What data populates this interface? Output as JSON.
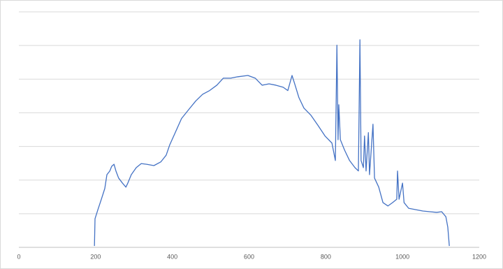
{
  "chart_data": {
    "type": "line",
    "x": [
      197,
      198.5,
      206,
      215,
      224,
      229.5,
      237,
      242,
      248,
      253,
      260,
      270,
      279,
      284,
      293,
      306,
      319,
      333,
      352,
      370,
      384,
      393,
      406,
      424,
      443,
      461,
      479,
      497,
      516,
      533,
      552,
      570,
      597,
      616,
      634,
      652,
      670,
      689,
      701,
      712,
      719,
      730,
      743,
      761,
      780,
      798,
      816,
      825,
      829,
      832,
      834,
      838,
      849,
      862,
      876,
      885,
      889,
      892,
      898,
      901,
      905,
      911,
      914,
      923,
      927,
      938,
      949,
      962,
      974,
      985,
      987,
      991,
      1000,
      1004,
      1016,
      1035,
      1053,
      1071,
      1089,
      1102,
      1113,
      1118,
      1122
    ],
    "series": [
      {
        "color": "#4472c4",
        "values": [
          0.04,
          0.85,
          1.12,
          1.43,
          1.75,
          2.16,
          2.27,
          2.41,
          2.47,
          2.27,
          2.06,
          1.91,
          1.79,
          1.91,
          2.16,
          2.37,
          2.49,
          2.47,
          2.43,
          2.54,
          2.74,
          3.04,
          3.37,
          3.83,
          4.1,
          4.35,
          4.55,
          4.66,
          4.82,
          5.03,
          5.03,
          5.07,
          5.11,
          5.03,
          4.82,
          4.86,
          4.82,
          4.76,
          4.66,
          5.11,
          4.86,
          4.45,
          4.14,
          3.93,
          3.62,
          3.31,
          3.1,
          2.58,
          6.01,
          3.2,
          4.24,
          3.2,
          2.89,
          2.58,
          2.37,
          2.27,
          6.17,
          2.58,
          2.37,
          3.31,
          2.27,
          3.41,
          2.16,
          3.66,
          2.06,
          1.79,
          1.33,
          1.23,
          1.33,
          1.43,
          2.27,
          1.43,
          1.91,
          1.33,
          1.16,
          1.12,
          1.08,
          1.06,
          1.04,
          1.06,
          0.91,
          0.6,
          0.04
        ]
      }
    ],
    "xlim": [
      0,
      1200
    ],
    "xticks": [
      0,
      200,
      400,
      600,
      800,
      1000,
      1200
    ],
    "ylim": [
      0,
      7
    ],
    "yticks": [
      0,
      1,
      2,
      3,
      4,
      5,
      6,
      7
    ],
    "ytick_labels": false,
    "grid": true
  }
}
